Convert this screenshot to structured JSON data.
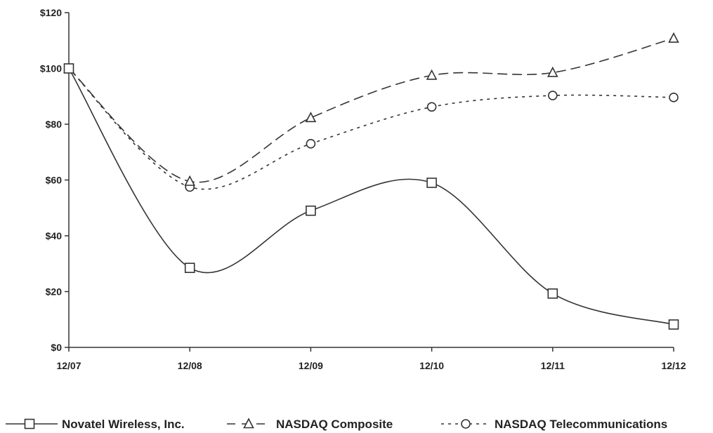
{
  "chart_data": {
    "type": "line",
    "title": "",
    "xlabel": "",
    "ylabel": "",
    "categories": [
      "12/07",
      "12/08",
      "12/09",
      "12/10",
      "12/11",
      "12/12"
    ],
    "y_ticks": [
      "$0",
      "$20",
      "$40",
      "$60",
      "$80",
      "$100",
      "$120"
    ],
    "ylim": [
      0,
      120
    ],
    "grid": false,
    "legend_position": "bottom",
    "series": [
      {
        "name": "Novatel Wireless, Inc.",
        "values": [
          100,
          28.5,
          49,
          59,
          19.3,
          8.2
        ],
        "line_style": "solid",
        "marker": "square",
        "color": "#333333"
      },
      {
        "name": "NASDAQ Composite",
        "values": [
          100,
          59.5,
          82.3,
          97.5,
          98.5,
          110.8
        ],
        "line_style": "dashed",
        "marker": "triangle",
        "color": "#333333"
      },
      {
        "name": "NASDAQ Telecommunications",
        "values": [
          100,
          57.5,
          73,
          86.2,
          90.3,
          89.6
        ],
        "line_style": "dotted",
        "marker": "circle",
        "color": "#333333"
      }
    ]
  }
}
